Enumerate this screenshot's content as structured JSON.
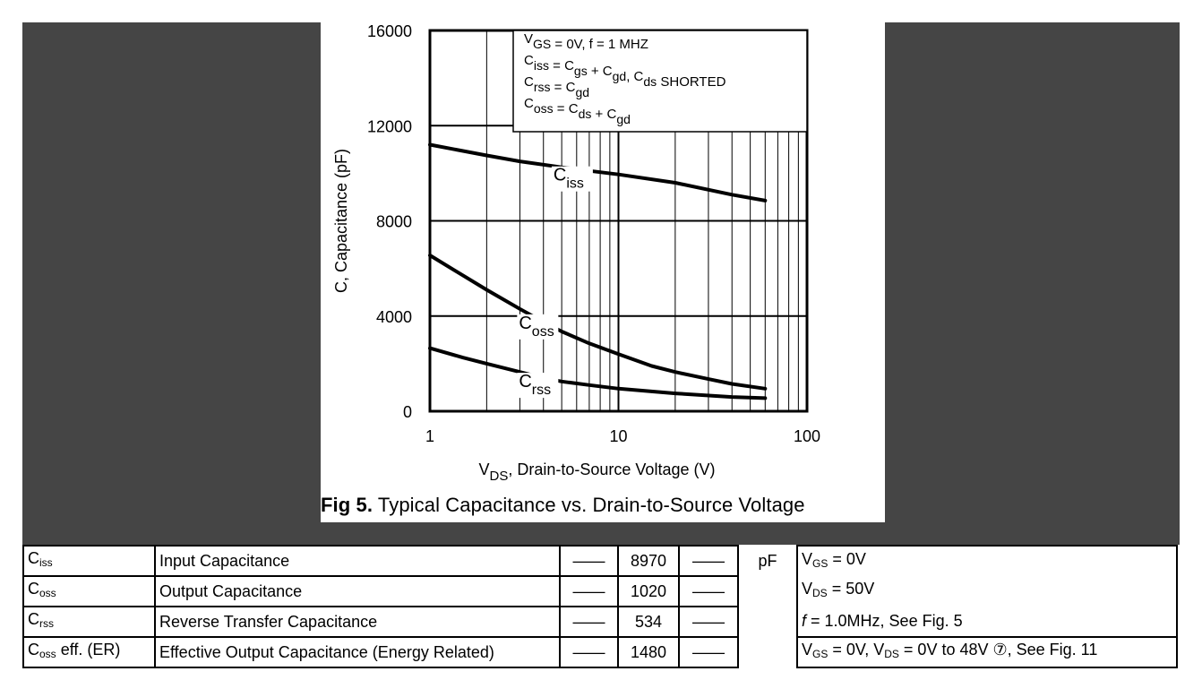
{
  "chart_data": {
    "type": "line",
    "xscale": "log",
    "xlim": [
      1,
      100
    ],
    "ylim": [
      0,
      16000
    ],
    "xticks": [
      "1",
      "10",
      "100"
    ],
    "yticks": [
      "0",
      "4000",
      "8000",
      "12000",
      "16000"
    ],
    "ylabel": "C, Capacitance (pF)",
    "xlabel": {
      "main": "V",
      "sub": "DS",
      "rest": ", Drain-to-Source Voltage (V)"
    },
    "grid": true,
    "series": [
      {
        "name": "Ciss",
        "label_main": "C",
        "label_sub": "iss",
        "x": [
          1,
          2,
          3,
          5,
          7,
          10,
          20,
          40,
          60
        ],
        "y": [
          11200,
          10750,
          10500,
          10250,
          10100,
          9950,
          9600,
          9100,
          8850
        ]
      },
      {
        "name": "Coss",
        "label_main": "C",
        "label_sub": "oss",
        "x": [
          1,
          1.5,
          2,
          3,
          4,
          5,
          7,
          10,
          15,
          20,
          30,
          40,
          60
        ],
        "y": [
          6550,
          5700,
          5100,
          4300,
          3750,
          3350,
          2850,
          2400,
          1900,
          1650,
          1350,
          1150,
          950
        ]
      },
      {
        "name": "Crss",
        "label_main": "C",
        "label_sub": "rss",
        "x": [
          1,
          1.5,
          2,
          3,
          4,
          5,
          7,
          10,
          20,
          40,
          60
        ],
        "y": [
          2650,
          2250,
          2000,
          1650,
          1400,
          1250,
          1100,
          950,
          750,
          600,
          550
        ]
      }
    ],
    "legend_box": {
      "position": "top-right",
      "lines": [
        {
          "a": "V",
          "a_sub": "GS",
          "b": "= 0V,",
          "c": "f = 1 MHZ"
        },
        {
          "a": "C",
          "a_sub": "iss",
          "b": "= C",
          "b_sub": "gs",
          "c": "+ C",
          "c_sub": "gd",
          "d": ",  C",
          "d_sub": "ds",
          "e": "SHORTED"
        },
        {
          "a": "C",
          "a_sub": "rss",
          "b": "= C",
          "b_sub": "gd"
        },
        {
          "a": "C",
          "a_sub": "oss",
          "b": "= C",
          "b_sub": "ds",
          "c": "+ C",
          "c_sub": "gd"
        }
      ]
    },
    "caption": {
      "bold": "Fig 5.",
      "text": "Typical Capacitance vs. Drain-to-Source Voltage"
    }
  },
  "colors": {
    "dark_panel": "#454545",
    "ink": "#000000",
    "paper": "#ffffff"
  },
  "table": {
    "dash": "——",
    "unit": "pF",
    "rows": [
      {
        "sym_main": "C",
        "sym_sub": "iss",
        "sym_rest": "",
        "param": "Input Capacitance",
        "typ": "8970"
      },
      {
        "sym_main": "C",
        "sym_sub": "oss",
        "sym_rest": "",
        "param": "Output Capacitance",
        "typ": "1020"
      },
      {
        "sym_main": "C",
        "sym_sub": "rss",
        "sym_rest": "",
        "param": "Reverse Transfer Capacitance",
        "typ": "534"
      },
      {
        "sym_main": "C",
        "sym_sub": "oss",
        "sym_rest": " eff. (ER)",
        "param": "Effective Output Capacitance (Energy Related)",
        "typ": "1480"
      }
    ],
    "conditions": [
      {
        "a": "V",
        "a_sub": "GS",
        "b": " = 0V"
      },
      {
        "a": "V",
        "a_sub": "DS",
        "b": " = 50V"
      },
      {
        "a": "f",
        "b": " = 1.0MHz,  See Fig. 5"
      },
      {
        "a": "V",
        "a_sub": "GS",
        "b": " = 0V, V",
        "b_sub": "DS",
        "c": " = 0V to 48V ⑦, See Fig. 11"
      }
    ]
  }
}
